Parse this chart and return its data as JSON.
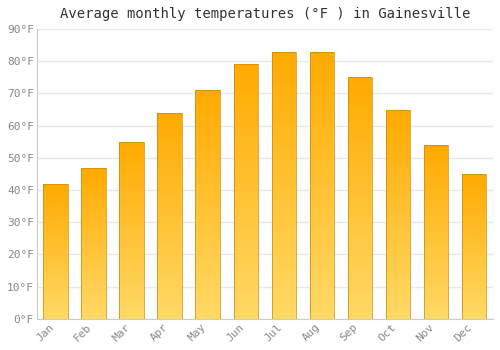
{
  "title": "Average monthly temperatures (°F ) in Gainesville",
  "months": [
    "Jan",
    "Feb",
    "Mar",
    "Apr",
    "May",
    "Jun",
    "Jul",
    "Aug",
    "Sep",
    "Oct",
    "Nov",
    "Dec"
  ],
  "values": [
    42,
    47,
    55,
    64,
    71,
    79,
    83,
    83,
    75,
    65,
    54,
    45
  ],
  "bar_color_top": "#FFAA00",
  "bar_color_bottom": "#FFD966",
  "bar_border_color": "#CC8800",
  "ylim": [
    0,
    90
  ],
  "yticks": [
    0,
    10,
    20,
    30,
    40,
    50,
    60,
    70,
    80,
    90
  ],
  "ytick_labels": [
    "0°F",
    "10°F",
    "20°F",
    "30°F",
    "40°F",
    "50°F",
    "60°F",
    "70°F",
    "80°F",
    "90°F"
  ],
  "background_color": "#ffffff",
  "plot_bg_color": "#ffffff",
  "grid_color": "#e8e8e8",
  "title_fontsize": 10,
  "tick_fontsize": 8,
  "tick_color": "#888888",
  "bar_width": 0.65
}
